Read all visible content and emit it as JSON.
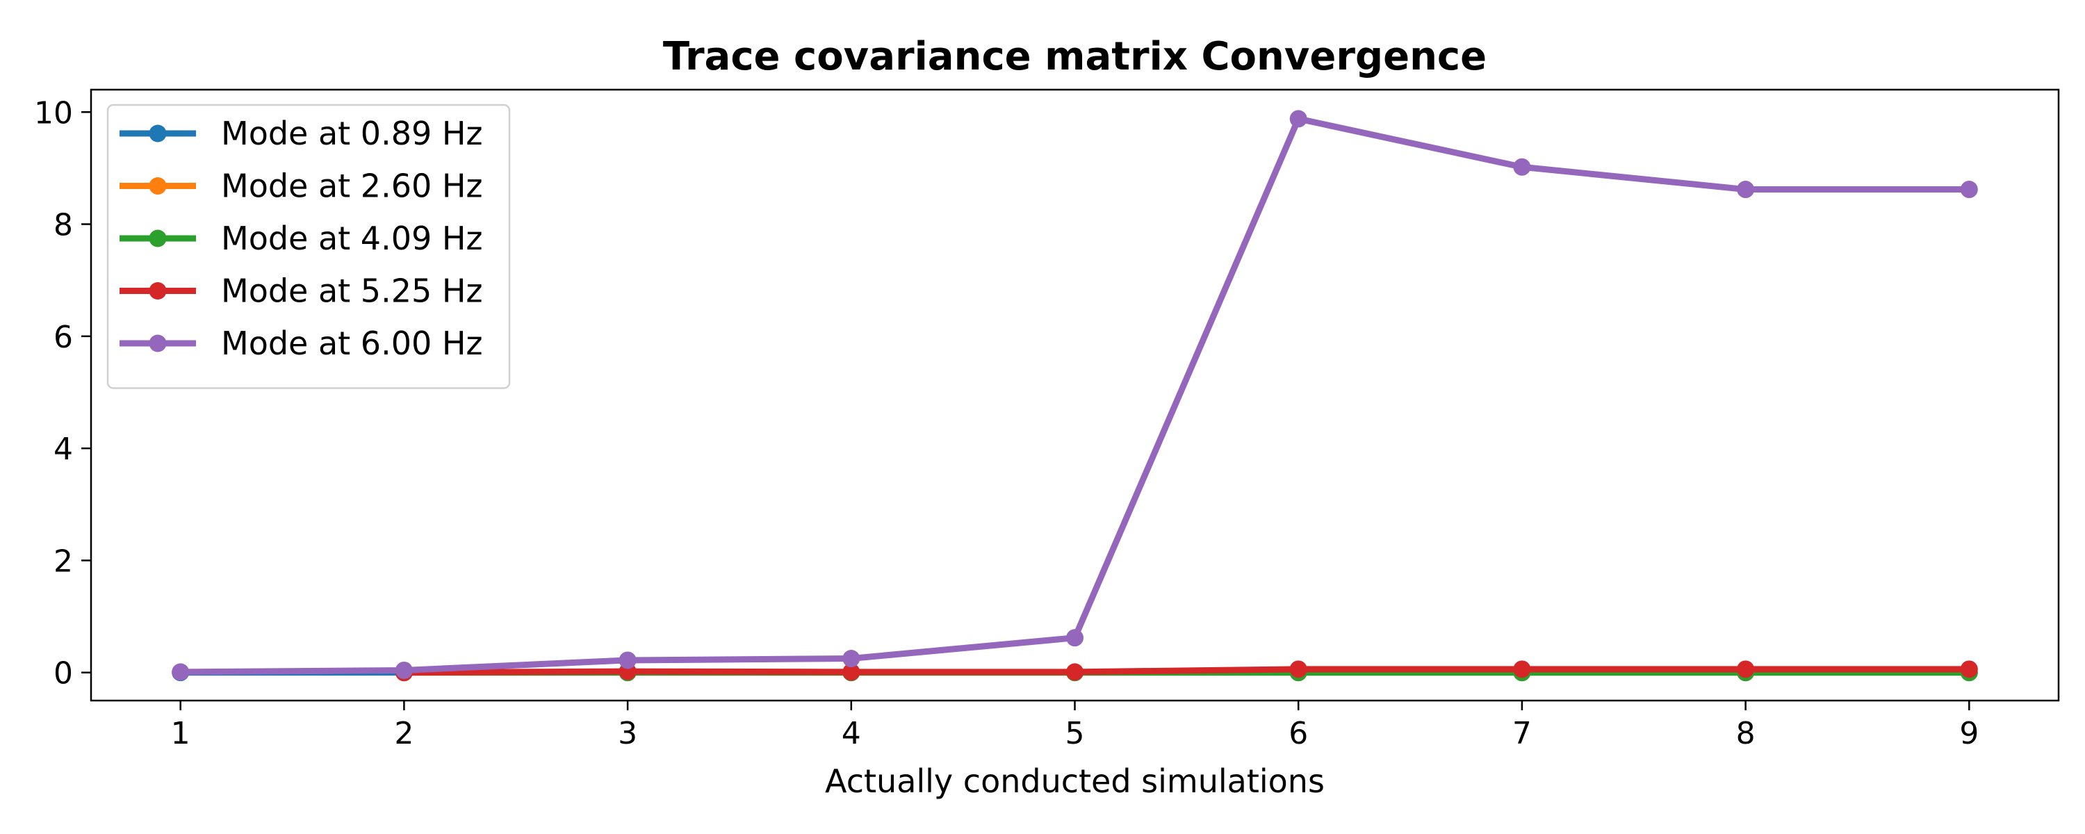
{
  "chart_data": {
    "type": "line",
    "title": "Trace covariance matrix Convergence",
    "xlabel": "Actually conducted simulations",
    "ylabel": "",
    "x": [
      1,
      2,
      3,
      4,
      5,
      6,
      7,
      8,
      9
    ],
    "xlim": [
      0.6,
      9.4
    ],
    "ylim": [
      -0.5,
      10.4
    ],
    "xticks": [
      "1",
      "2",
      "3",
      "4",
      "5",
      "6",
      "7",
      "8",
      "9"
    ],
    "yticks": [
      "0",
      "2",
      "4",
      "6",
      "8",
      "10"
    ],
    "grid": false,
    "legend_position": "top-left",
    "series": [
      {
        "name": "Mode at 0.89 Hz",
        "color": "#1f77b4",
        "x": [
          1,
          2,
          3,
          4,
          5,
          6,
          7,
          8,
          9
        ],
        "values": [
          0.0,
          0.0,
          0.0,
          0.0,
          0.0,
          0.0,
          0.0,
          0.0,
          0.0
        ]
      },
      {
        "name": "Mode at 2.60 Hz",
        "color": "#ff7f0e",
        "x": [
          2,
          3,
          4,
          5,
          6,
          7,
          8,
          9
        ],
        "values": [
          0.0,
          0.0,
          0.0,
          0.0,
          0.0,
          0.0,
          0.0,
          0.0
        ]
      },
      {
        "name": "Mode at 4.09 Hz",
        "color": "#2ca02c",
        "x": [
          2,
          3,
          4,
          5,
          6,
          7,
          8,
          9
        ],
        "values": [
          0.0,
          0.0,
          0.0,
          0.0,
          0.0,
          0.0,
          0.0,
          0.0
        ]
      },
      {
        "name": "Mode at 5.25 Hz",
        "color": "#d62728",
        "x": [
          2,
          3,
          4,
          5,
          6,
          7,
          8,
          9
        ],
        "values": [
          0.0,
          0.02,
          0.01,
          0.01,
          0.06,
          0.06,
          0.06,
          0.06
        ]
      },
      {
        "name": "Mode at 6.00 Hz",
        "color": "#9467bd",
        "x": [
          1,
          2,
          3,
          4,
          5,
          6,
          7,
          8,
          9
        ],
        "values": [
          0.01,
          0.04,
          0.22,
          0.25,
          0.62,
          9.88,
          9.02,
          8.62,
          8.62
        ]
      }
    ]
  }
}
